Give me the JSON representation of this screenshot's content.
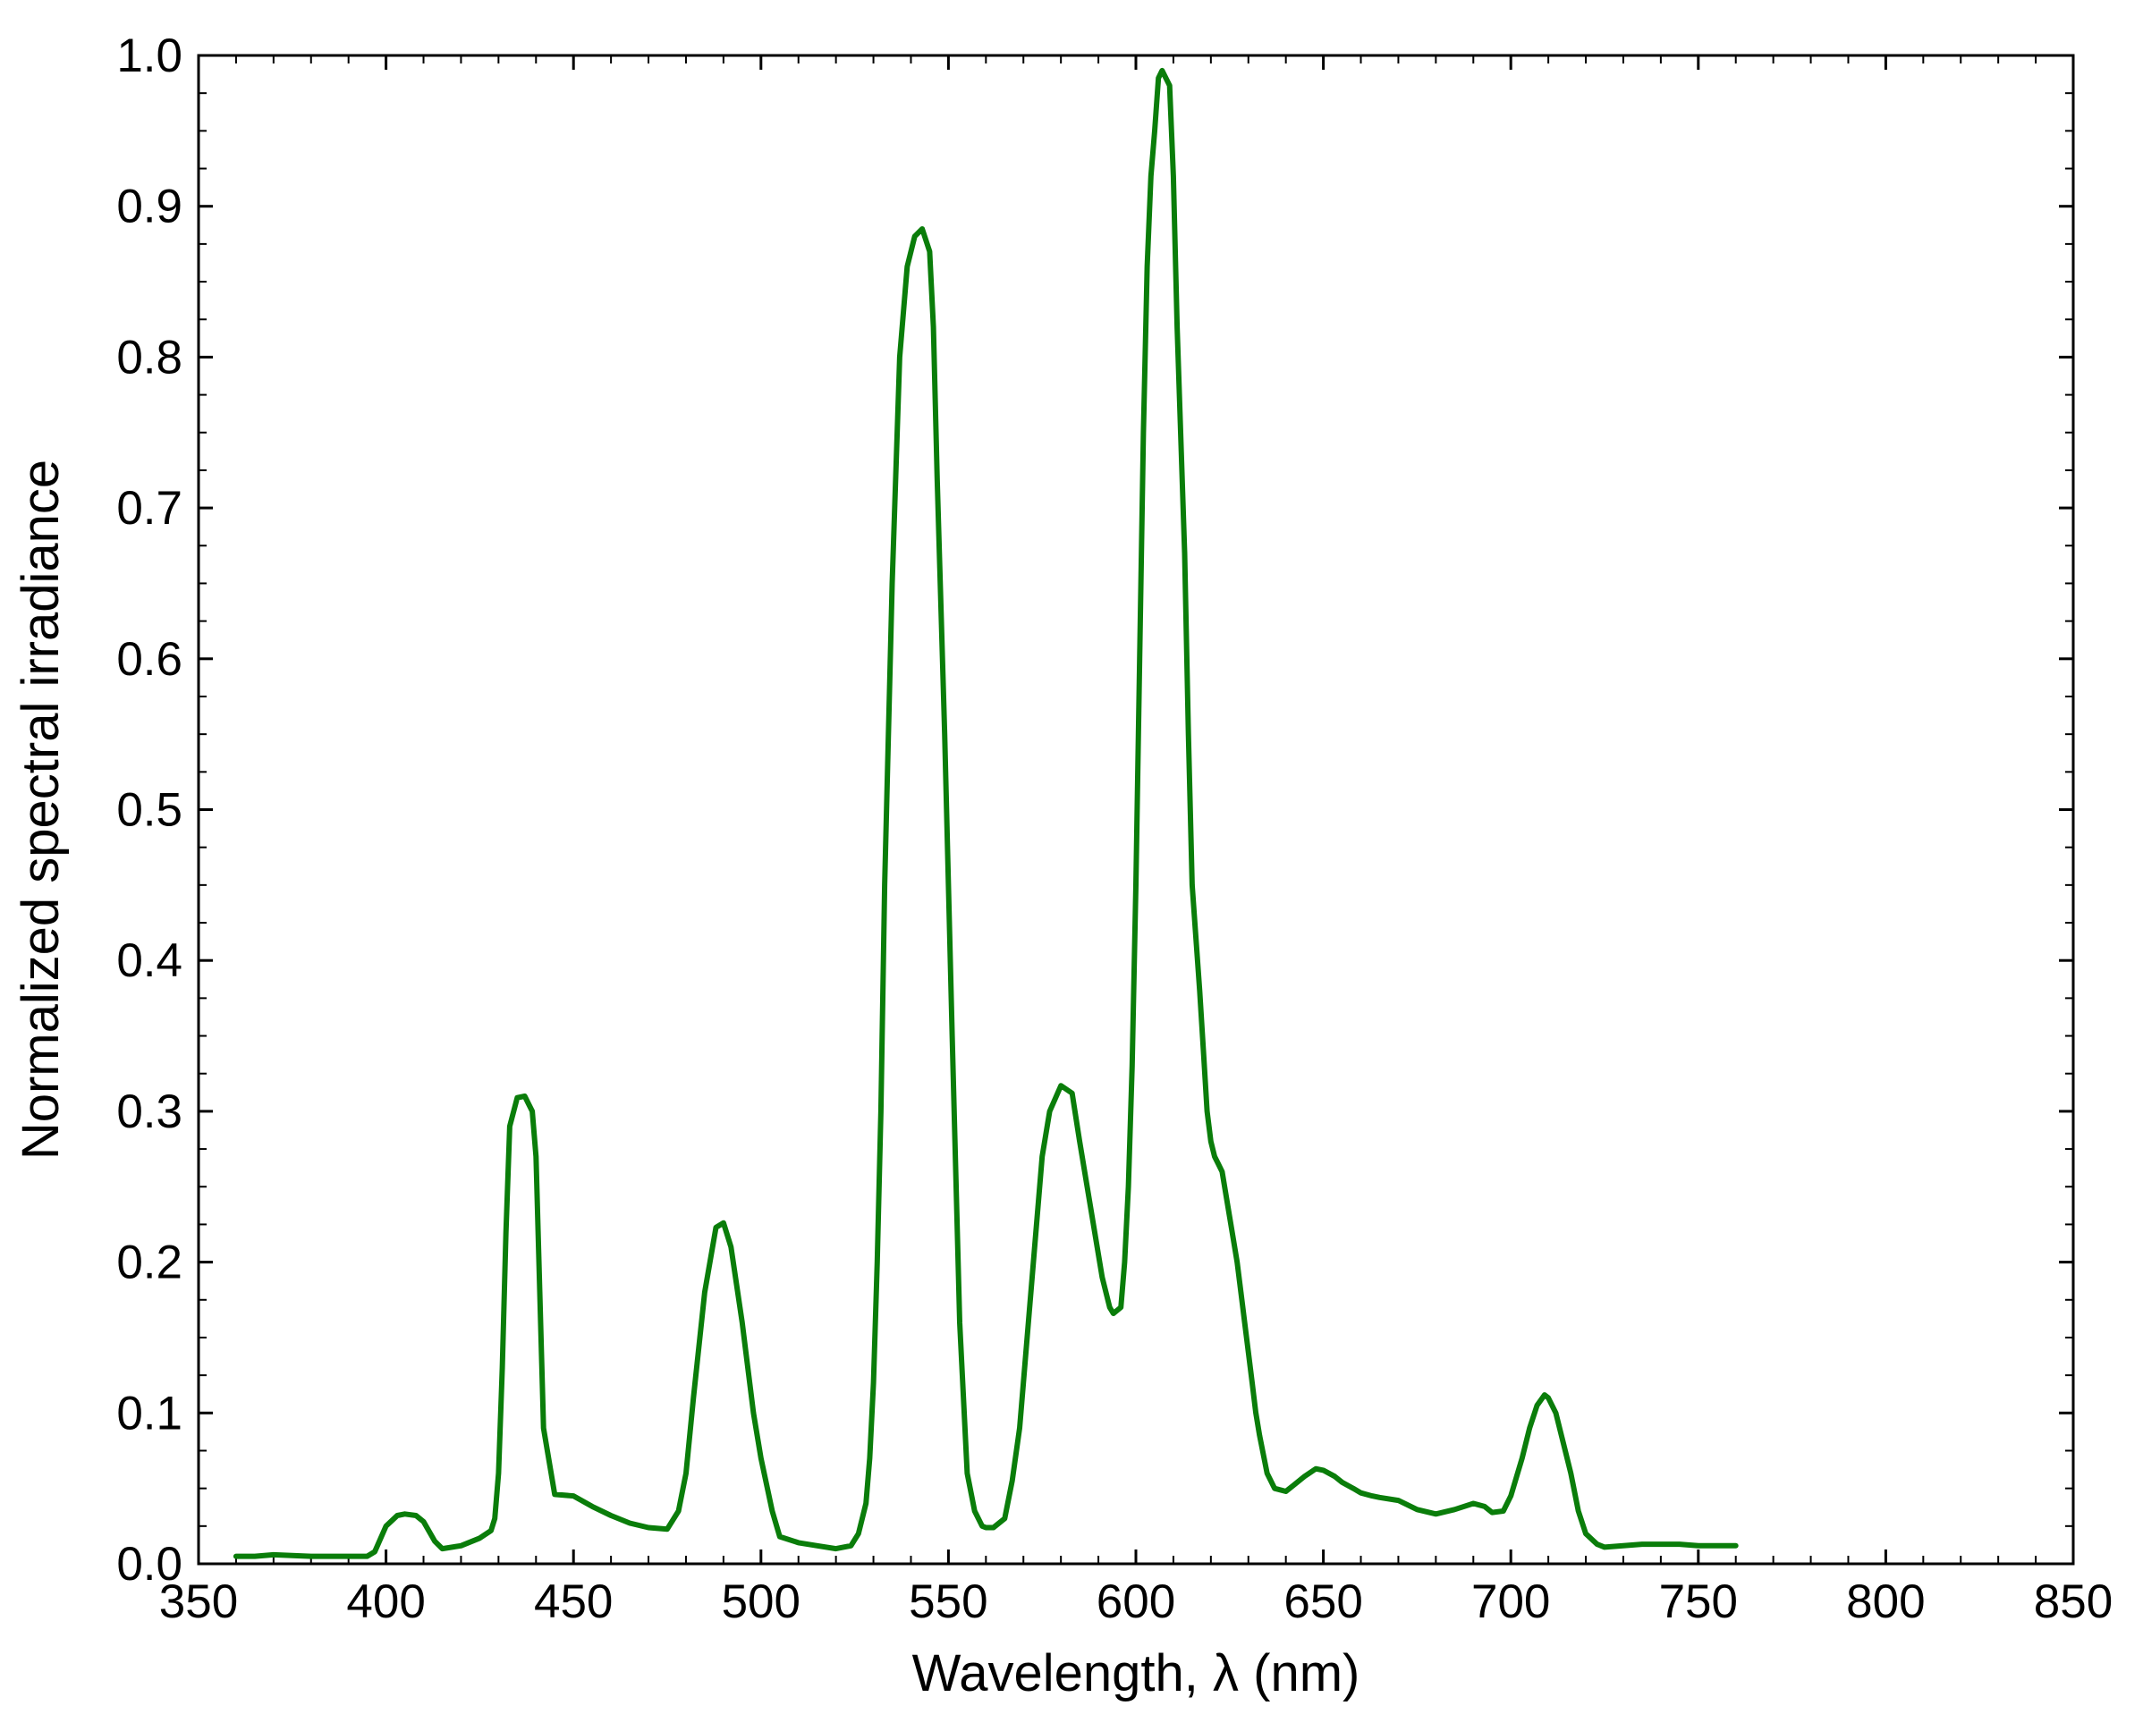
{
  "chart_data": {
    "type": "line",
    "title": "",
    "xlabel": "Wavelength, λ (nm)",
    "ylabel": "Normalized spectral irradiance",
    "xlim": [
      350,
      850
    ],
    "ylim": [
      0.0,
      1.0
    ],
    "x_ticks": [
      350,
      400,
      450,
      500,
      550,
      600,
      650,
      700,
      750,
      800,
      850
    ],
    "x_tick_labels": [
      "350",
      "400",
      "450",
      "500",
      "550",
      "600",
      "650",
      "700",
      "750",
      "800",
      "850"
    ],
    "y_ticks": [
      0.0,
      0.1,
      0.2,
      0.3,
      0.4,
      0.5,
      0.6,
      0.7,
      0.8,
      0.9,
      1.0
    ],
    "y_tick_labels": [
      "0.0",
      "0.1",
      "0.2",
      "0.3",
      "0.4",
      "0.5",
      "0.6",
      "0.7",
      "0.8",
      "0.9",
      "1.0"
    ],
    "grid": false,
    "legend": "none",
    "series": [
      {
        "color": "#0a7d0a",
        "x": [
          360,
          365,
          370,
          380,
          390,
          395,
          397,
          400,
          403,
          405,
          408,
          410,
          413,
          415,
          420,
          425,
          428,
          429,
          430,
          431,
          432,
          433,
          435,
          437,
          438,
          439,
          440,
          441,
          442,
          445,
          450,
          455,
          460,
          465,
          470,
          475,
          478,
          480,
          482,
          485,
          488,
          490,
          492,
          495,
          498,
          500,
          503,
          505,
          510,
          515,
          520,
          524,
          526,
          528,
          529,
          530,
          531,
          532,
          533,
          535,
          537,
          539,
          541,
          543,
          545,
          546,
          547,
          549,
          551,
          553,
          555,
          557,
          559,
          560,
          562,
          565,
          567,
          569,
          570,
          572,
          574,
          575,
          577,
          580,
          583,
          585,
          587,
          589,
          591,
          593,
          594,
          596,
          597,
          598,
          599,
          600,
          601,
          602,
          603,
          604,
          605,
          606,
          607,
          609,
          610,
          611,
          613,
          614,
          615,
          617,
          618,
          619,
          620,
          621,
          622,
          623,
          624,
          625,
          627,
          628,
          629,
          630,
          631,
          632,
          633,
          635,
          637,
          640,
          642,
          645,
          648,
          650,
          653,
          655,
          658,
          660,
          663,
          665,
          670,
          675,
          680,
          685,
          690,
          693,
          695,
          698,
          700,
          703,
          705,
          707,
          709,
          710,
          712,
          714,
          716,
          718,
          720,
          723,
          725,
          730,
          735,
          740,
          745,
          750,
          755,
          760
        ],
        "y": [
          0.005,
          0.005,
          0.006,
          0.005,
          0.005,
          0.005,
          0.008,
          0.025,
          0.032,
          0.033,
          0.032,
          0.028,
          0.015,
          0.01,
          0.012,
          0.017,
          0.022,
          0.03,
          0.06,
          0.13,
          0.22,
          0.29,
          0.309,
          0.31,
          0.305,
          0.3,
          0.27,
          0.18,
          0.09,
          0.046,
          0.045,
          0.038,
          0.032,
          0.027,
          0.024,
          0.023,
          0.035,
          0.06,
          0.11,
          0.18,
          0.223,
          0.226,
          0.21,
          0.16,
          0.1,
          0.07,
          0.035,
          0.018,
          0.014,
          0.012,
          0.01,
          0.012,
          0.02,
          0.04,
          0.07,
          0.12,
          0.2,
          0.3,
          0.45,
          0.65,
          0.8,
          0.86,
          0.88,
          0.885,
          0.87,
          0.82,
          0.72,
          0.55,
          0.35,
          0.16,
          0.06,
          0.035,
          0.025,
          0.024,
          0.024,
          0.03,
          0.055,
          0.09,
          0.12,
          0.18,
          0.24,
          0.27,
          0.3,
          0.317,
          0.312,
          0.28,
          0.25,
          0.22,
          0.19,
          0.17,
          0.166,
          0.17,
          0.2,
          0.25,
          0.33,
          0.45,
          0.6,
          0.75,
          0.86,
          0.92,
          0.95,
          0.985,
          0.99,
          0.98,
          0.92,
          0.82,
          0.67,
          0.55,
          0.45,
          0.38,
          0.34,
          0.3,
          0.28,
          0.27,
          0.265,
          0.26,
          0.245,
          0.23,
          0.2,
          0.18,
          0.16,
          0.14,
          0.12,
          0.1,
          0.085,
          0.06,
          0.05,
          0.048,
          0.052,
          0.058,
          0.063,
          0.062,
          0.058,
          0.054,
          0.05,
          0.047,
          0.045,
          0.044,
          0.042,
          0.036,
          0.033,
          0.036,
          0.04,
          0.038,
          0.034,
          0.035,
          0.045,
          0.07,
          0.09,
          0.105,
          0.112,
          0.11,
          0.1,
          0.08,
          0.06,
          0.035,
          0.02,
          0.013,
          0.011,
          0.012,
          0.013,
          0.013,
          0.013,
          0.012,
          0.012,
          0.012
        ]
      }
    ]
  }
}
